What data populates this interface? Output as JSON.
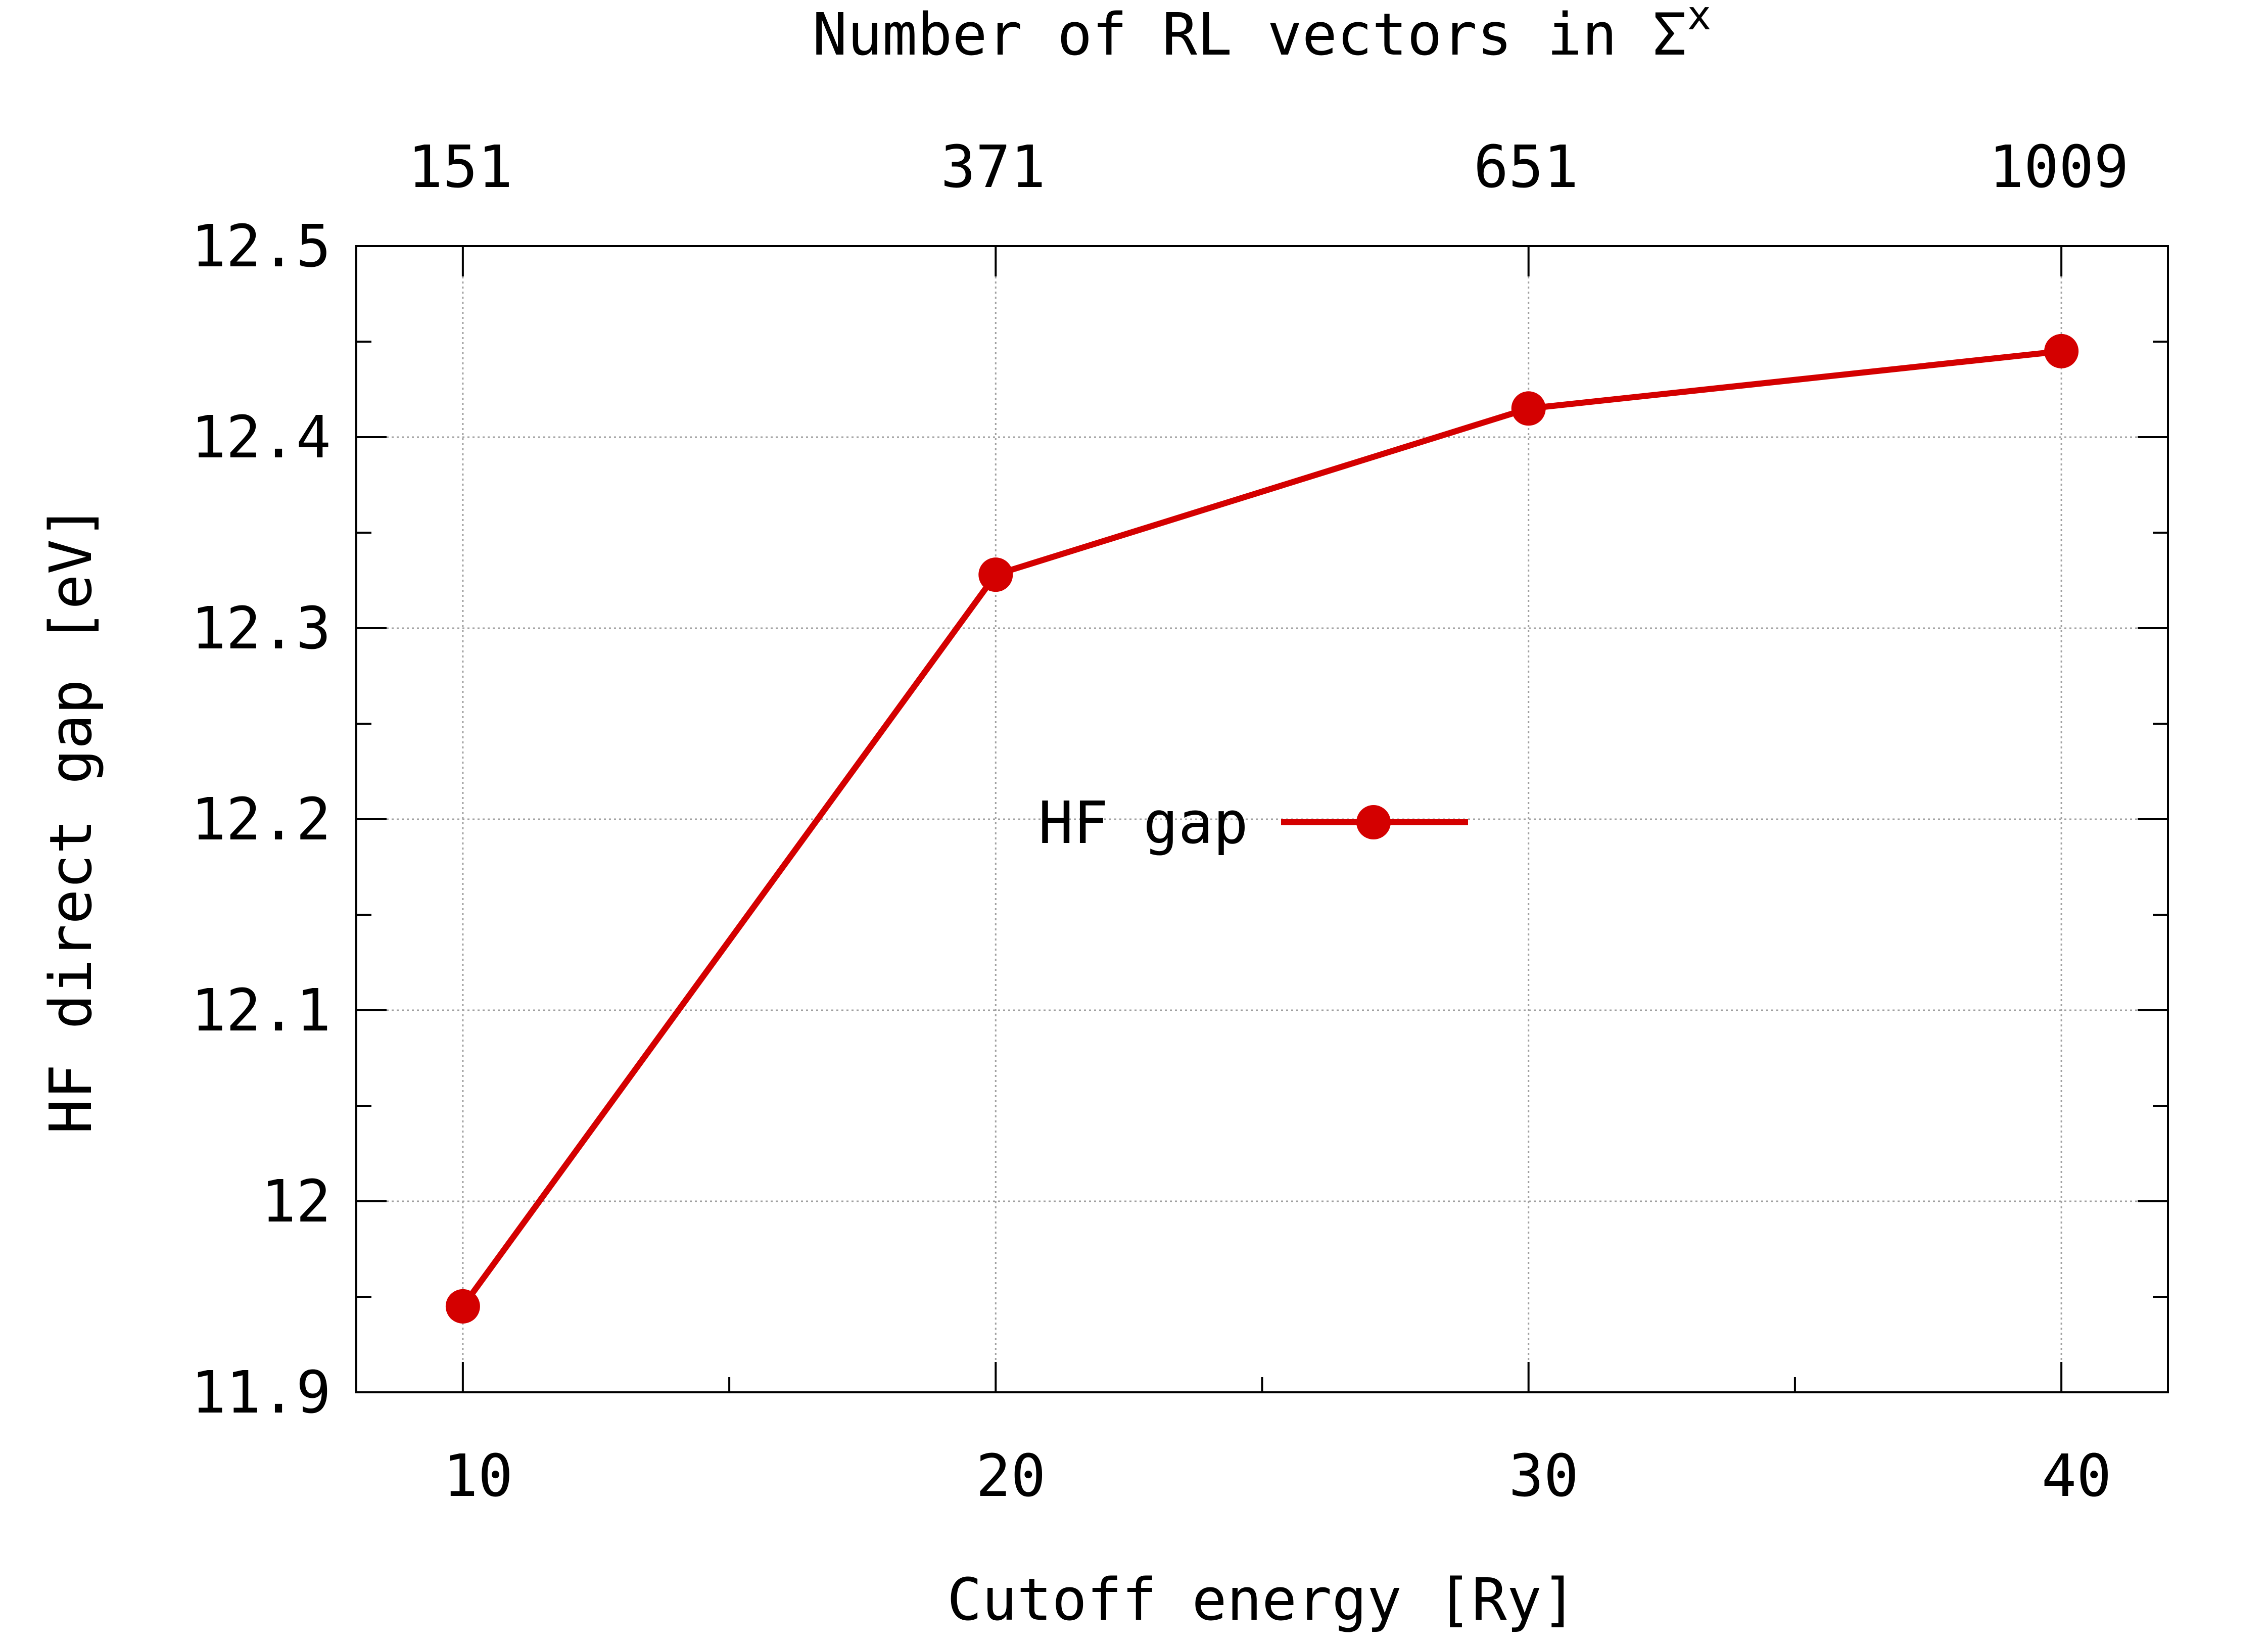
{
  "chart_data": {
    "type": "line",
    "title": "",
    "xlabel": "Cutoff energy [Ry]",
    "ylabel": "HF direct gap [eV]",
    "x2label_main": "Number of RL vectors in Σ",
    "x2label_sup": "x",
    "xlim": [
      8,
      42
    ],
    "ylim": [
      11.9,
      12.5
    ],
    "x_ticks": [
      10,
      20,
      30,
      40
    ],
    "x_tick_labels": [
      "10",
      "20",
      "30",
      "40"
    ],
    "y_ticks": [
      11.9,
      12.0,
      12.1,
      12.2,
      12.3,
      12.4,
      12.5
    ],
    "y_tick_labels": [
      "11.9",
      "12",
      "12.1",
      "12.2",
      "12.3",
      "12.4",
      "12.5"
    ],
    "x2_tick_positions": [
      10,
      20,
      30,
      40
    ],
    "x2_tick_labels": [
      "151",
      "371",
      "651",
      "1009"
    ],
    "grid": true,
    "legend_position": "center",
    "series": [
      {
        "name": "HF gap",
        "color": "#d40000",
        "x": [
          10,
          20,
          30,
          40
        ],
        "values": [
          11.945,
          12.328,
          12.415,
          12.445
        ]
      }
    ]
  }
}
